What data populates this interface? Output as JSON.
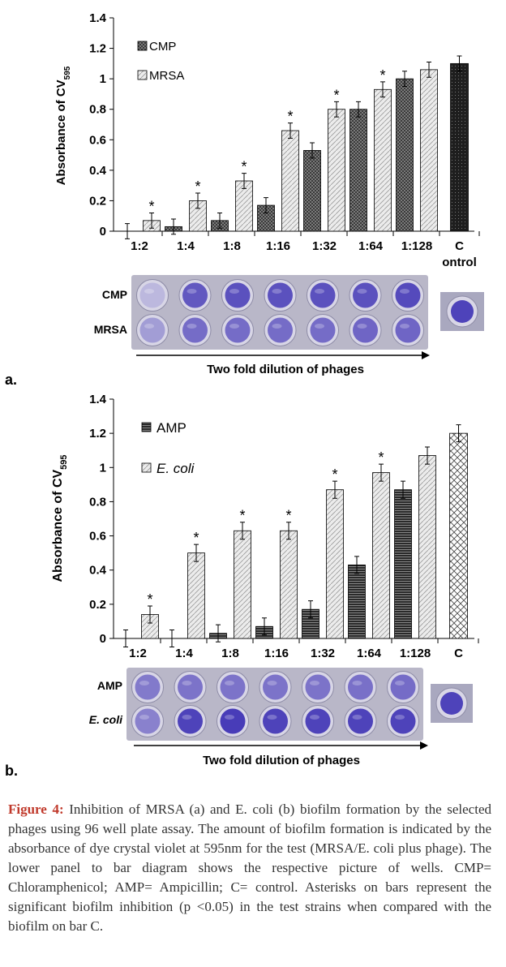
{
  "figure": {
    "panel_a_letter": "a.",
    "panel_b_letter": "b."
  },
  "colors": {
    "treated_bar": "#3a3a3a",
    "untreated_bar": "#e6e6e6",
    "control_bar": "#1e1e1e",
    "well_dark": "#4b3fb8",
    "well_light": "#c9c6e2",
    "plate_bg": "#b9b7c8",
    "caption_lead": "#c0392b"
  },
  "panel_a": {
    "plate_rows": [
      "CMP",
      "MRSA"
    ],
    "plate_intensity": {
      "CMP": [
        0.1,
        0.8,
        0.85,
        0.85,
        0.85,
        0.85,
        0.9
      ],
      "MRSA": [
        0.3,
        0.65,
        0.65,
        0.65,
        0.65,
        0.7,
        0.7
      ]
    },
    "control_well_intensity": 0.95,
    "arrow_label": "Two fold dilution of phages"
  },
  "panel_b": {
    "plate_rows": [
      "AMP",
      "E. coli"
    ],
    "plate_intensity": {
      "AMP": [
        0.55,
        0.6,
        0.6,
        0.6,
        0.6,
        0.62,
        0.65
      ],
      "E. coli": [
        0.5,
        0.95,
        1.0,
        0.95,
        0.95,
        0.95,
        0.95
      ]
    },
    "control_well_intensity": 0.95,
    "arrow_label": "Two fold dilution of phages"
  },
  "chart_data": [
    {
      "type": "bar",
      "panel": "a",
      "ylabel_main": "Absorbance of CV",
      "ylabel_sub": "595",
      "ylim": [
        0,
        1.4
      ],
      "yticks": [
        "0",
        "0.2",
        "0.4",
        "0.6",
        "0.8",
        "1",
        "1.2",
        "1.4"
      ],
      "categories": [
        "1:2",
        "1:4",
        "1:8",
        "1:16",
        "1:32",
        "1:64",
        "1:128",
        "C\nontrol"
      ],
      "legend": [
        "CMP",
        "MRSA"
      ],
      "legend_italic": [
        false,
        false
      ],
      "legend_position": "top-left",
      "series": [
        {
          "name": "CMP",
          "values": [
            0,
            0.03,
            0.07,
            0.17,
            0.53,
            0.8,
            1.0,
            null
          ],
          "errors": [
            0.05,
            0.05,
            0.05,
            0.05,
            0.05,
            0.05,
            0.05,
            null
          ]
        },
        {
          "name": "MRSA",
          "values": [
            0.07,
            0.2,
            0.33,
            0.66,
            0.8,
            0.93,
            1.06,
            null
          ],
          "errors": [
            0.05,
            0.05,
            0.05,
            0.05,
            0.05,
            0.05,
            0.05,
            null
          ]
        }
      ],
      "control": {
        "value": 1.1,
        "error": 0.05
      },
      "significant": [
        "*",
        "*",
        "*",
        "*",
        "*",
        "*",
        "",
        ""
      ]
    },
    {
      "type": "bar",
      "panel": "b",
      "ylabel_main": "Absorbance of CV",
      "ylabel_sub": "595",
      "ylim": [
        0,
        1.4
      ],
      "yticks": [
        "0",
        "0.2",
        "0.4",
        "0.6",
        "0.8",
        "1",
        "1.2",
        "1.4"
      ],
      "categories": [
        "1:2",
        "1:4",
        "1:8",
        "1:16",
        "1:32",
        "1:64",
        "1:128",
        "C"
      ],
      "legend": [
        "AMP",
        "E. coli"
      ],
      "legend_italic": [
        false,
        true
      ],
      "legend_position": "top-left",
      "series": [
        {
          "name": "AMP",
          "values": [
            0,
            0,
            0.03,
            0.07,
            0.17,
            0.43,
            0.87,
            null
          ],
          "errors": [
            0.05,
            0.05,
            0.05,
            0.05,
            0.05,
            0.05,
            0.05,
            null
          ]
        },
        {
          "name": "E. coli",
          "values": [
            0.14,
            0.5,
            0.63,
            0.63,
            0.87,
            0.97,
            1.07,
            null
          ],
          "errors": [
            0.05,
            0.05,
            0.05,
            0.05,
            0.05,
            0.05,
            0.05,
            null
          ]
        }
      ],
      "control": {
        "value": 1.2,
        "error": 0.05
      },
      "significant": [
        "*",
        "*",
        "*",
        "*",
        "*",
        "*",
        "",
        ""
      ]
    }
  ],
  "caption": {
    "lead": "Figure 4:",
    "text": " Inhibition of MRSA (a) and E. coli (b) biofilm formation by the selected phages using 96 well plate assay. The amount of biofilm formation is indicated by the absorbance of dye crystal violet at 595nm for the test (MRSA/E. coli plus phage). The lower panel to bar diagram shows the respective picture of wells. CMP= Chloramphenicol; AMP= Ampicillin; C= control. Asterisks on bars represent the significant biofilm inhibition (p <0.05) in the test strains when compared with the biofilm on bar C."
  }
}
